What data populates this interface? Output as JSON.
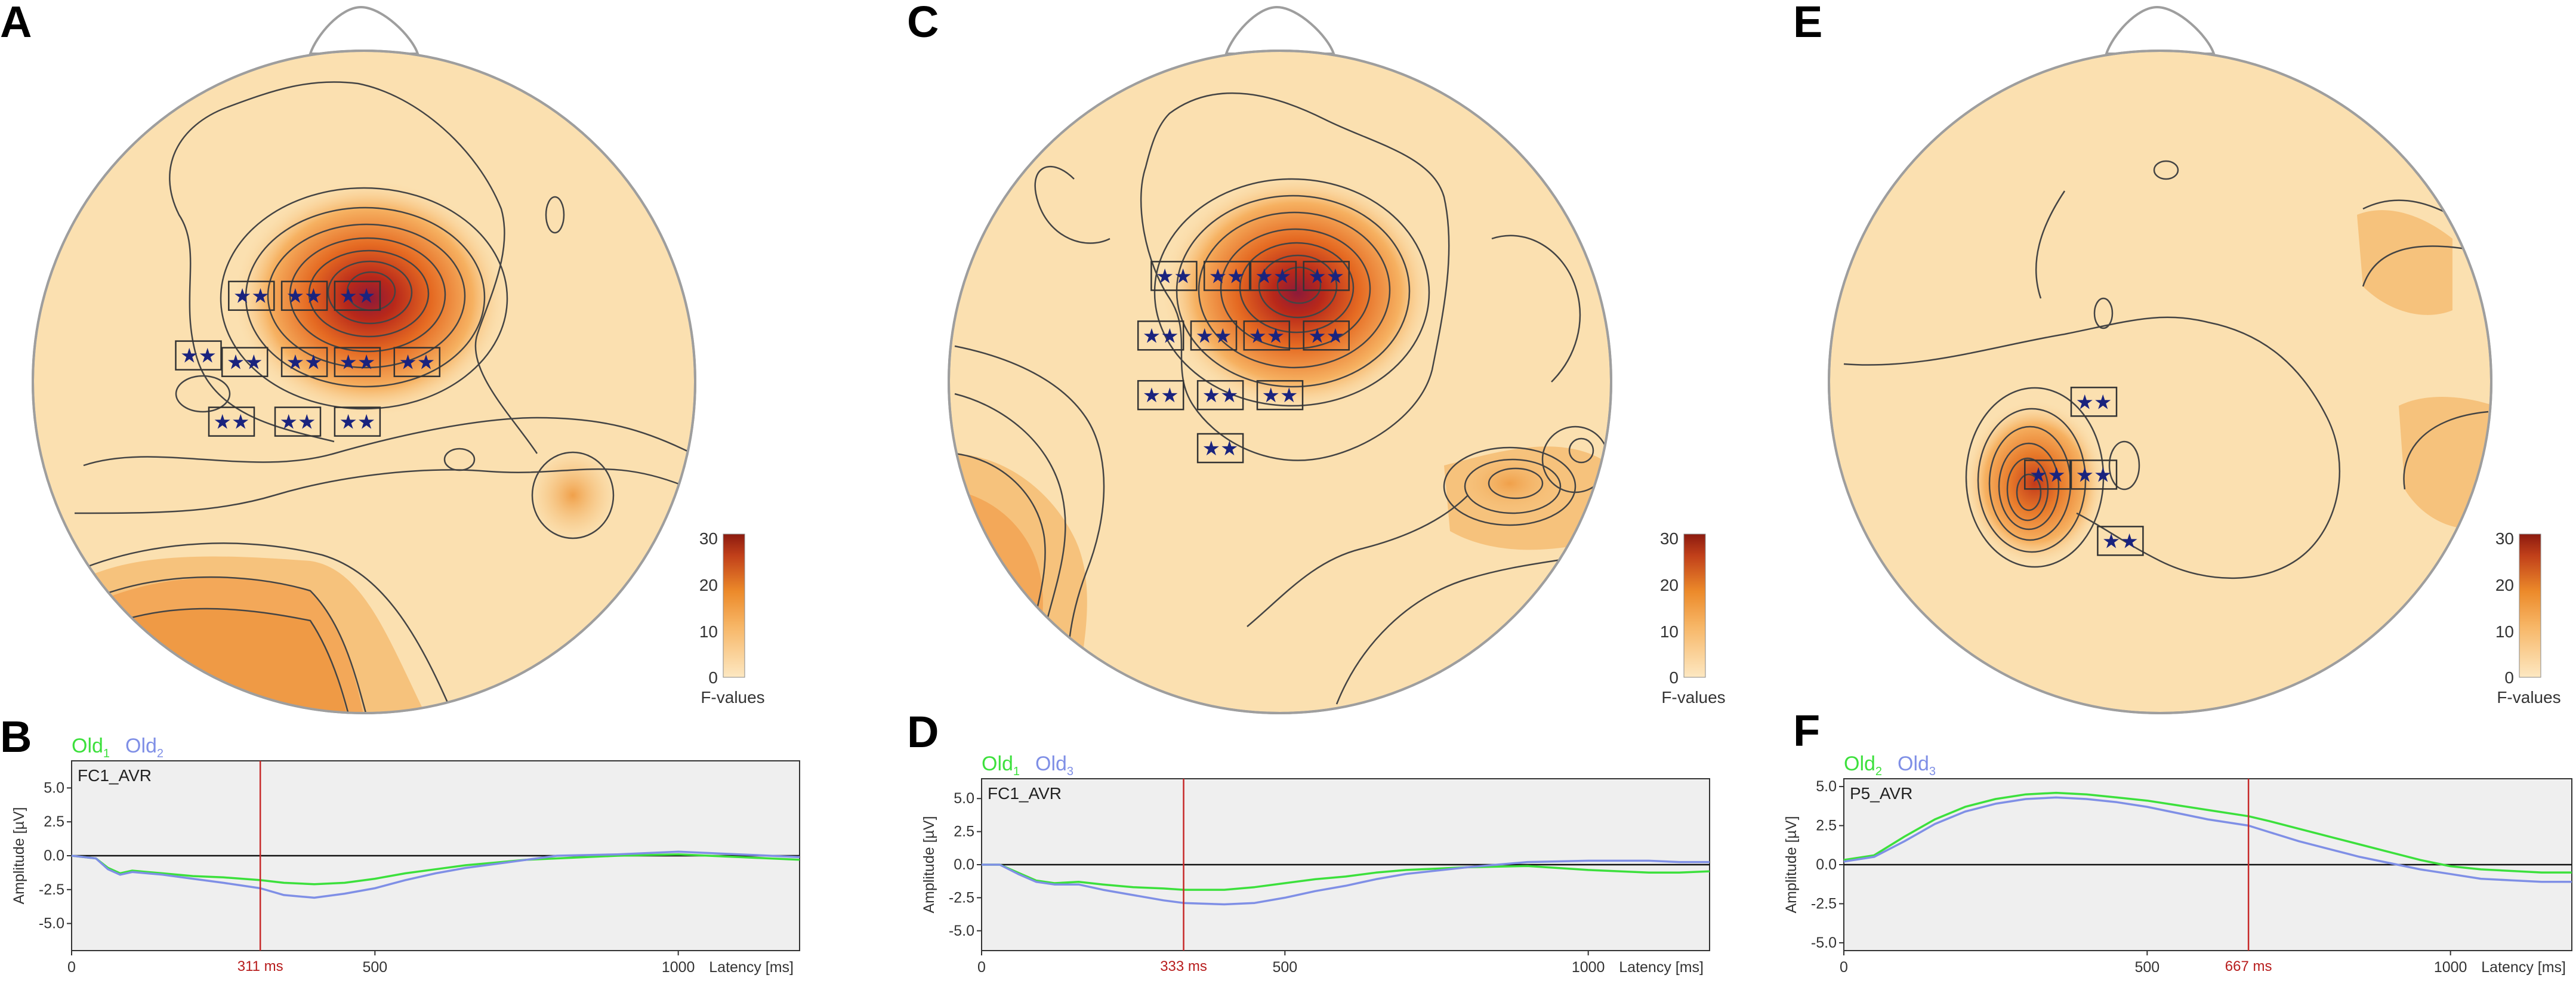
{
  "colors": {
    "head_fill": "#fbe0b0",
    "colorbar_low": "#fde8c2",
    "colorbar_mid": "#f0962e",
    "colorbar_high": "#8c1a0f",
    "old1_line": "#3ce03c",
    "old2_line": "#7f8fe6",
    "marker_line": "#c62828",
    "star": "#1a237e",
    "plot_bg": "#efefef"
  },
  "colorbar": {
    "ticks": [
      "30",
      "20",
      "10",
      "0"
    ],
    "title": "F-values"
  },
  "chart_data": [
    {
      "panel": "A",
      "type": "heatmap",
      "title": "",
      "center": [
        0.43,
        0.44
      ],
      "electrode_marks": [
        {
          "x": 0.33,
          "y": 0.37
        },
        {
          "x": 0.41,
          "y": 0.37
        },
        {
          "x": 0.49,
          "y": 0.37
        },
        {
          "x": 0.25,
          "y": 0.46
        },
        {
          "x": 0.32,
          "y": 0.47
        },
        {
          "x": 0.41,
          "y": 0.47
        },
        {
          "x": 0.49,
          "y": 0.47
        },
        {
          "x": 0.58,
          "y": 0.47
        },
        {
          "x": 0.3,
          "y": 0.56
        },
        {
          "x": 0.4,
          "y": 0.56
        },
        {
          "x": 0.49,
          "y": 0.56
        }
      ],
      "marker_text": "★★"
    },
    {
      "panel": "B",
      "type": "line",
      "channel": "FC1_AVR",
      "ylabel": "Amplitude [µV]",
      "xlabel": "Latency [ms]",
      "xlim": [
        0,
        1200
      ],
      "ylim": [
        -7,
        7
      ],
      "yticks": [
        "5.0",
        "2.5",
        "0.0",
        "-2.5",
        "-5.0"
      ],
      "ytick_values": [
        5,
        2.5,
        0,
        -2.5,
        -5
      ],
      "xticks": [
        "0",
        "500",
        "1000"
      ],
      "xtick_values": [
        0,
        500,
        1000
      ],
      "marker": {
        "x": 311,
        "label": "311 ms"
      },
      "legend": [
        {
          "name": "Old",
          "sub": "1"
        },
        {
          "name": "Old",
          "sub": "2"
        }
      ],
      "series": [
        {
          "name": "Old1",
          "x": [
            0,
            40,
            60,
            80,
            100,
            150,
            200,
            250,
            311,
            350,
            400,
            450,
            500,
            550,
            600,
            650,
            700,
            750,
            800,
            900,
            1000,
            1050,
            1100,
            1150,
            1200
          ],
          "values": [
            0,
            -0.2,
            -0.9,
            -1.3,
            -1.1,
            -1.3,
            -1.5,
            -1.6,
            -1.8,
            -2.0,
            -2.1,
            -2.0,
            -1.7,
            -1.3,
            -1.0,
            -0.7,
            -0.5,
            -0.3,
            -0.2,
            0,
            0.1,
            0,
            -0.1,
            -0.2,
            -0.3
          ]
        },
        {
          "name": "Old2",
          "x": [
            0,
            40,
            60,
            80,
            100,
            150,
            200,
            250,
            311,
            350,
            400,
            450,
            500,
            550,
            600,
            650,
            700,
            750,
            800,
            900,
            1000,
            1050,
            1100,
            1150,
            1200
          ],
          "values": [
            0,
            -0.2,
            -1.0,
            -1.4,
            -1.2,
            -1.4,
            -1.7,
            -2.0,
            -2.4,
            -2.9,
            -3.1,
            -2.8,
            -2.4,
            -1.8,
            -1.3,
            -0.9,
            -0.6,
            -0.3,
            0,
            0.1,
            0.3,
            0.2,
            0.1,
            0,
            -0.1
          ]
        }
      ]
    },
    {
      "panel": "C",
      "type": "heatmap",
      "title": "",
      "center": [
        0.47,
        0.42
      ],
      "electrode_marks": [
        {
          "x": 0.34,
          "y": 0.34
        },
        {
          "x": 0.42,
          "y": 0.34
        },
        {
          "x": 0.49,
          "y": 0.34
        },
        {
          "x": 0.57,
          "y": 0.34
        },
        {
          "x": 0.32,
          "y": 0.43
        },
        {
          "x": 0.4,
          "y": 0.43
        },
        {
          "x": 0.48,
          "y": 0.43
        },
        {
          "x": 0.57,
          "y": 0.43
        },
        {
          "x": 0.32,
          "y": 0.52
        },
        {
          "x": 0.41,
          "y": 0.52
        },
        {
          "x": 0.5,
          "y": 0.52
        },
        {
          "x": 0.41,
          "y": 0.6
        }
      ],
      "marker_text": "★★"
    },
    {
      "panel": "D",
      "type": "line",
      "channel": "FC1_AVR",
      "ylabel": "Amplitude [µV]",
      "xlabel": "Latency [ms]",
      "xlim": [
        0,
        1200
      ],
      "ylim": [
        -6.5,
        6.5
      ],
      "yticks": [
        "5.0",
        "2.5",
        "0.0",
        "-2.5",
        "-5.0"
      ],
      "ytick_values": [
        5,
        2.5,
        0,
        -2.5,
        -5
      ],
      "xticks": [
        "0",
        "500",
        "1000"
      ],
      "xtick_values": [
        0,
        500,
        1000
      ],
      "marker": {
        "x": 333,
        "label": "333 ms"
      },
      "legend": [
        {
          "name": "Old",
          "sub": "1"
        },
        {
          "name": "Old",
          "sub": "3"
        }
      ],
      "series": [
        {
          "name": "Old1",
          "x": [
            0,
            30,
            60,
            90,
            120,
            160,
            200,
            250,
            300,
            333,
            400,
            450,
            500,
            550,
            600,
            650,
            700,
            800,
            900,
            1000,
            1100,
            1150,
            1200
          ],
          "values": [
            0,
            0,
            -0.6,
            -1.2,
            -1.4,
            -1.3,
            -1.5,
            -1.7,
            -1.8,
            -1.9,
            -1.9,
            -1.7,
            -1.4,
            -1.1,
            -0.9,
            -0.6,
            -0.4,
            -0.2,
            -0.1,
            -0.4,
            -0.6,
            -0.6,
            -0.5
          ]
        },
        {
          "name": "Old3",
          "x": [
            0,
            30,
            60,
            90,
            120,
            160,
            200,
            250,
            300,
            333,
            400,
            450,
            500,
            550,
            600,
            650,
            700,
            800,
            900,
            1000,
            1100,
            1150,
            1200
          ],
          "values": [
            0,
            0,
            -0.7,
            -1.3,
            -1.5,
            -1.5,
            -1.9,
            -2.3,
            -2.7,
            -2.9,
            -3.0,
            -2.9,
            -2.5,
            -2.0,
            -1.6,
            -1.1,
            -0.7,
            -0.2,
            0.2,
            0.3,
            0.3,
            0.2,
            0.2
          ]
        }
      ]
    },
    {
      "panel": "E",
      "type": "heatmap",
      "title": "",
      "center": [
        0.33,
        0.62
      ],
      "electrode_marks": [
        {
          "x": 0.4,
          "y": 0.53
        },
        {
          "x": 0.33,
          "y": 0.64
        },
        {
          "x": 0.4,
          "y": 0.64
        },
        {
          "x": 0.44,
          "y": 0.74
        }
      ],
      "marker_text": "★★"
    },
    {
      "panel": "F",
      "type": "line",
      "channel": "P5_AVR",
      "ylabel": "Amplitude [µV]",
      "xlabel": "Latency [ms]",
      "xlim": [
        0,
        1200
      ],
      "ylim": [
        -5.5,
        5.5
      ],
      "yticks": [
        "5.0",
        "2.5",
        "0.0",
        "-2.5",
        "-5.0"
      ],
      "ytick_values": [
        5,
        2.5,
        0,
        -2.5,
        -5
      ],
      "xticks": [
        "0",
        "500",
        "1000"
      ],
      "xtick_values": [
        0,
        500,
        1000
      ],
      "marker": {
        "x": 667,
        "label": "667 ms"
      },
      "legend": [
        {
          "name": "Old",
          "sub": "2"
        },
        {
          "name": "Old",
          "sub": "3"
        }
      ],
      "series": [
        {
          "name": "Old2",
          "x": [
            0,
            50,
            100,
            150,
            200,
            250,
            300,
            350,
            400,
            450,
            500,
            550,
            600,
            667,
            700,
            750,
            800,
            850,
            900,
            950,
            1000,
            1050,
            1100,
            1150,
            1200
          ],
          "values": [
            0.3,
            0.6,
            1.8,
            2.9,
            3.7,
            4.2,
            4.5,
            4.6,
            4.5,
            4.3,
            4.1,
            3.8,
            3.5,
            3.1,
            2.8,
            2.3,
            1.8,
            1.3,
            0.8,
            0.3,
            -0.1,
            -0.3,
            -0.4,
            -0.5,
            -0.5
          ]
        },
        {
          "name": "Old3",
          "x": [
            0,
            50,
            100,
            150,
            200,
            250,
            300,
            350,
            400,
            450,
            500,
            550,
            600,
            667,
            700,
            750,
            800,
            850,
            900,
            950,
            1000,
            1050,
            1100,
            1150,
            1200
          ],
          "values": [
            0.2,
            0.5,
            1.5,
            2.6,
            3.4,
            3.9,
            4.2,
            4.3,
            4.2,
            4.0,
            3.7,
            3.3,
            2.9,
            2.5,
            2.1,
            1.5,
            1.0,
            0.5,
            0.1,
            -0.3,
            -0.6,
            -0.9,
            -1.0,
            -1.1,
            -1.1
          ]
        }
      ]
    }
  ]
}
